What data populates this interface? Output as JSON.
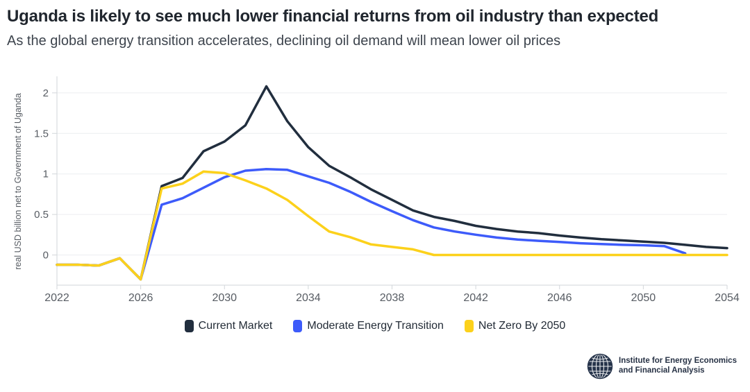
{
  "header": {
    "title": "Uganda is likely to see much lower financial returns from oil industry than expected",
    "subtitle": "As the global energy transition accelerates, declining oil demand will mean lower oil prices"
  },
  "chart_data": {
    "type": "line",
    "x": [
      2022,
      2023,
      2024,
      2025,
      2026,
      2027,
      2028,
      2029,
      2030,
      2031,
      2032,
      2033,
      2034,
      2035,
      2036,
      2037,
      2038,
      2039,
      2040,
      2041,
      2042,
      2043,
      2044,
      2045,
      2046,
      2047,
      2048,
      2049,
      2050,
      2051,
      2052,
      2053,
      2054
    ],
    "series": [
      {
        "name": "Current Market",
        "color": "#212e3e",
        "values": [
          -0.12,
          -0.12,
          -0.13,
          -0.04,
          -0.3,
          0.85,
          0.95,
          1.28,
          1.4,
          1.6,
          2.08,
          1.65,
          1.33,
          1.1,
          0.96,
          0.81,
          0.68,
          0.55,
          0.47,
          0.42,
          0.36,
          0.32,
          0.29,
          0.27,
          0.24,
          0.215,
          0.195,
          0.18,
          0.165,
          0.15,
          0.125,
          0.1,
          0.085
        ]
      },
      {
        "name": "Moderate Energy Transition",
        "color": "#3d5bfa",
        "values": [
          -0.12,
          -0.12,
          -0.13,
          -0.04,
          -0.3,
          0.62,
          0.7,
          0.83,
          0.96,
          1.04,
          1.06,
          1.05,
          0.97,
          0.89,
          0.78,
          0.655,
          0.54,
          0.43,
          0.34,
          0.29,
          0.25,
          0.215,
          0.19,
          0.175,
          0.16,
          0.145,
          0.135,
          0.125,
          0.12,
          0.11,
          0.02,
          null,
          null
        ]
      },
      {
        "name": "Net Zero By 2050",
        "color": "#fcd11b",
        "values": [
          -0.12,
          -0.12,
          -0.13,
          -0.04,
          -0.3,
          0.82,
          0.88,
          1.03,
          1.01,
          0.92,
          0.82,
          0.68,
          0.48,
          0.29,
          0.22,
          0.13,
          0.1,
          0.07,
          0.0,
          0.0,
          0.0,
          0.0,
          0.0,
          0.0,
          0.0,
          0.0,
          0.0,
          0.0,
          0.0,
          0.0,
          0.0,
          0.0,
          0.0
        ]
      }
    ],
    "title": "",
    "xlabel": "",
    "ylabel": "real USD billion net to Government of Uganda",
    "xlim": [
      2022,
      2054
    ],
    "ylim": [
      -0.372,
      2.187
    ],
    "grid": true,
    "legend_position": "bottom",
    "y_ticks": [
      {
        "value": 0,
        "label": "0"
      },
      {
        "value": 0.5,
        "label": "0.5"
      },
      {
        "value": 1,
        "label": "1"
      },
      {
        "value": 1.5,
        "label": "1.5"
      },
      {
        "value": 2,
        "label": "2"
      }
    ],
    "x_ticks": [
      {
        "value": 2022,
        "label": "2022"
      },
      {
        "value": 2026,
        "label": "2026"
      },
      {
        "value": 2030,
        "label": "2030"
      },
      {
        "value": 2034,
        "label": "2034"
      },
      {
        "value": 2038,
        "label": "2038"
      },
      {
        "value": 2042,
        "label": "2042"
      },
      {
        "value": 2046,
        "label": "2046"
      },
      {
        "value": 2050,
        "label": "2050"
      },
      {
        "value": 2054,
        "label": "2054"
      }
    ],
    "colors": {
      "gridline": "#ecedf0",
      "axis": "#d2d6da",
      "tick_label": "#575c63",
      "axis_title": "#575c63"
    }
  },
  "footer": {
    "org_line1": "Institute for Energy Economics",
    "org_line2": "and Financial Analysis"
  }
}
